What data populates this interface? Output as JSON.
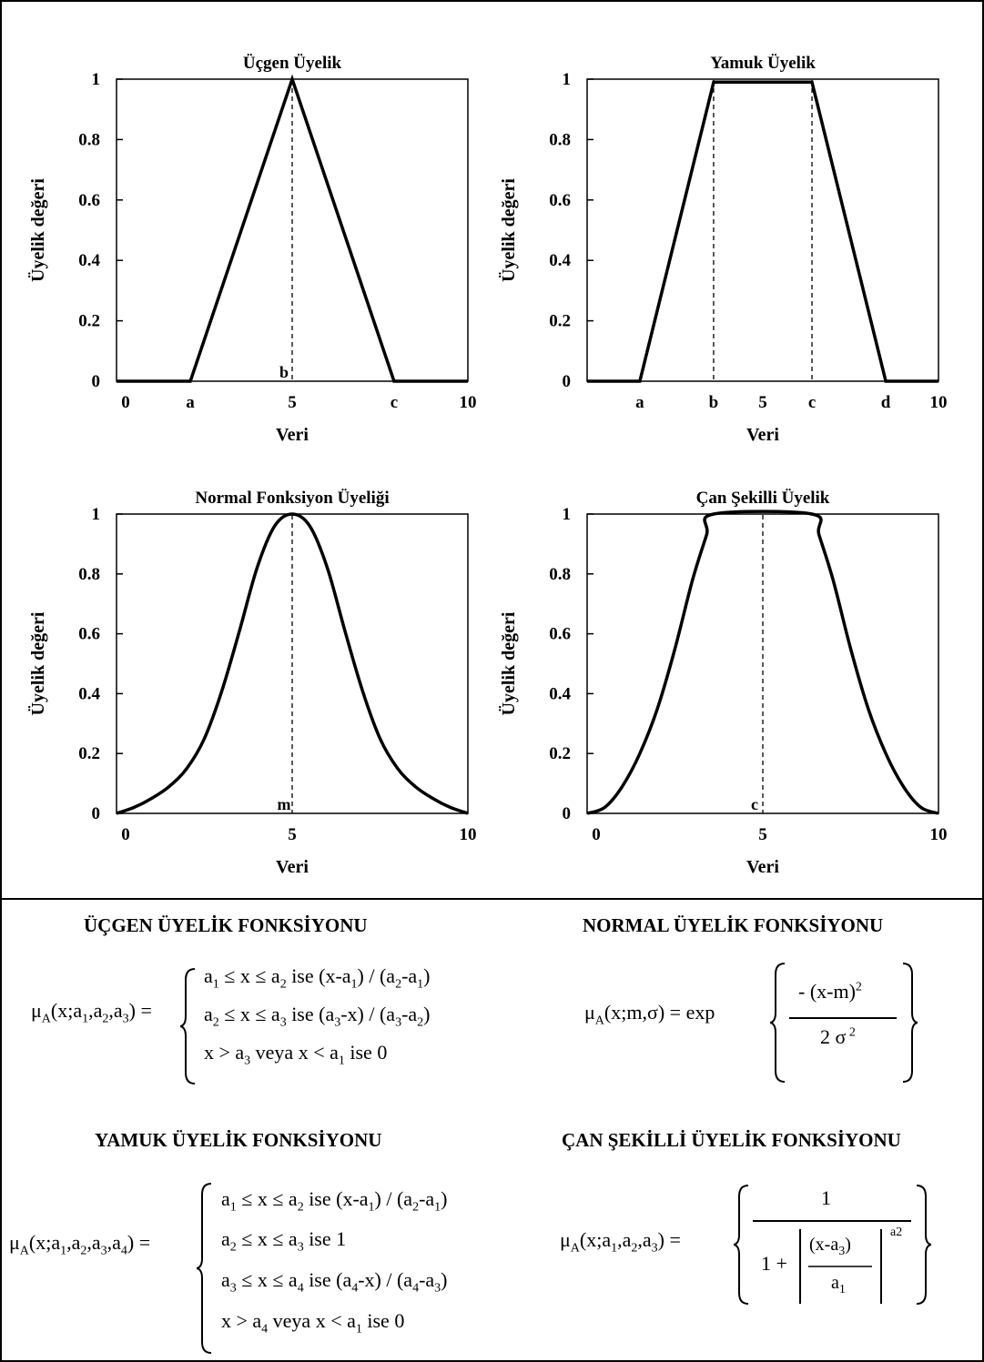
{
  "chart_data": [
    {
      "type": "line",
      "title": "Üçgen Üyelik",
      "xlabel": "Veri",
      "ylabel": "Üyelik değeri",
      "xlim": [
        0,
        10
      ],
      "ylim": [
        0,
        1
      ],
      "yticks": [
        "0",
        "0.2",
        "0.4",
        "0.6",
        "0.8",
        "1"
      ],
      "xtick_labels": [
        {
          "x": 0,
          "label": "0"
        },
        {
          "x": 2.1,
          "label": "a"
        },
        {
          "x": 5,
          "label": "5"
        },
        {
          "x": 7.9,
          "label": "c"
        },
        {
          "x": 10,
          "label": "10"
        }
      ],
      "series": [
        {
          "x": [
            0,
            2.1,
            5,
            7.9,
            10
          ],
          "y": [
            0,
            0,
            1,
            0,
            0
          ]
        }
      ],
      "vlines": [
        {
          "x": 5,
          "label": "b"
        }
      ]
    },
    {
      "type": "line",
      "title": "Yamuk Üyelik",
      "xlabel": "Veri",
      "ylabel": "Üyelik değeri",
      "xlim": [
        0,
        10
      ],
      "ylim": [
        0,
        1
      ],
      "yticks": [
        "0",
        "0.2",
        "0.4",
        "0.6",
        "0.8",
        "1"
      ],
      "xtick_labels": [
        {
          "x": 1.5,
          "label": "a"
        },
        {
          "x": 3.6,
          "label": "b"
        },
        {
          "x": 5,
          "label": "5"
        },
        {
          "x": 6.4,
          "label": "c"
        },
        {
          "x": 8.5,
          "label": "d"
        },
        {
          "x": 10,
          "label": "10"
        }
      ],
      "series": [
        {
          "x": [
            0,
            1.5,
            3.6,
            6.4,
            8.5,
            10
          ],
          "y": [
            0,
            0,
            0.99,
            0.99,
            0,
            0
          ]
        }
      ],
      "vlines": [
        {
          "x": 3.6
        },
        {
          "x": 6.4
        }
      ]
    },
    {
      "type": "line",
      "title": "Normal Fonksiyon Üyeliği",
      "xlabel": "Veri",
      "ylabel": "Üyelik değeri",
      "xlim": [
        0,
        10
      ],
      "ylim": [
        0,
        1
      ],
      "yticks": [
        "0",
        "0.2",
        "0.4",
        "0.6",
        "0.8",
        "1"
      ],
      "xtick_labels": [
        {
          "x": 0,
          "label": "0"
        },
        {
          "x": 5,
          "label": "5"
        },
        {
          "x": 10,
          "label": "10"
        }
      ],
      "series": [
        {
          "x": [
            0,
            0.5,
            1,
            1.5,
            2,
            2.5,
            3,
            3.5,
            4,
            4.5,
            5,
            5.5,
            6,
            6.5,
            7,
            7.5,
            8,
            8.5,
            9,
            9.5,
            10
          ],
          "y": [
            0.0,
            0.02,
            0.05,
            0.09,
            0.15,
            0.25,
            0.41,
            0.61,
            0.82,
            0.96,
            1.0,
            0.96,
            0.82,
            0.61,
            0.41,
            0.25,
            0.15,
            0.09,
            0.05,
            0.02,
            0.0
          ]
        }
      ],
      "vlines": [
        {
          "x": 5,
          "label": "m"
        }
      ]
    },
    {
      "type": "line",
      "title": "Çan Şekilli Üyelik",
      "xlabel": "Veri",
      "ylabel": "Üyelik değeri",
      "xlim": [
        0,
        10
      ],
      "ylim": [
        0,
        1
      ],
      "yticks": [
        "0",
        "0.2",
        "0.4",
        "0.6",
        "0.8",
        "1"
      ],
      "xtick_labels": [
        {
          "x": 0,
          "label": "0"
        },
        {
          "x": 5,
          "label": "5"
        },
        {
          "x": 10,
          "label": "10"
        }
      ],
      "series": [
        {
          "x": [
            0,
            0.5,
            1,
            1.5,
            2,
            2.5,
            3,
            3.4,
            3.6,
            6.4,
            6.6,
            7,
            7.5,
            8,
            8.5,
            9,
            9.5,
            10
          ],
          "y": [
            0.0,
            0.02,
            0.09,
            0.2,
            0.35,
            0.55,
            0.78,
            0.93,
            1.0,
            1.0,
            0.93,
            0.78,
            0.55,
            0.35,
            0.2,
            0.09,
            0.02,
            0.0
          ]
        }
      ],
      "vlines": [
        {
          "x": 5,
          "label": "c"
        }
      ]
    }
  ],
  "formulas": {
    "triangle": {
      "title": "ÜÇGEN ÜYELİK FONKSİYONU",
      "lhs": "μA(x;a1,a2,a3) =",
      "cases": [
        "a1 ≤ x ≤ a2 ise (x-a1) / (a2-a1)",
        "a2 ≤ x ≤ a3 ise (a3-x) / (a3-a2)",
        "x > a3 veya x < a1 ise 0"
      ]
    },
    "normal": {
      "title": "NORMAL ÜYELİK FONKSİYONU",
      "lhs": "μA(x;m,σ) = exp",
      "numerator": "- (x-m)2",
      "denominator": "2 σ2"
    },
    "trapezoid": {
      "title": "YAMUK ÜYELİK FONKSİYONU",
      "lhs": "μA(x;a1,a2,a3,a4) =",
      "cases": [
        "a1 ≤ x ≤ a2 ise (x-a1) / (a2-a1)",
        "a2 ≤ x ≤ a3 ise 1",
        "a3 ≤ x ≤ a4 ise (a4-x) / (a4-a3)",
        "x > a4 veya x < a1 ise 0"
      ]
    },
    "bell": {
      "title": "ÇAN ŞEKİLLİ ÜYELİK FONKSİYONU",
      "lhs": "μA(x;a1,a2,a3) =",
      "numerator": "1",
      "one_plus": "1 +",
      "inner_num": "(x-a3)",
      "inner_den": "a1",
      "exponent": "a2"
    }
  }
}
